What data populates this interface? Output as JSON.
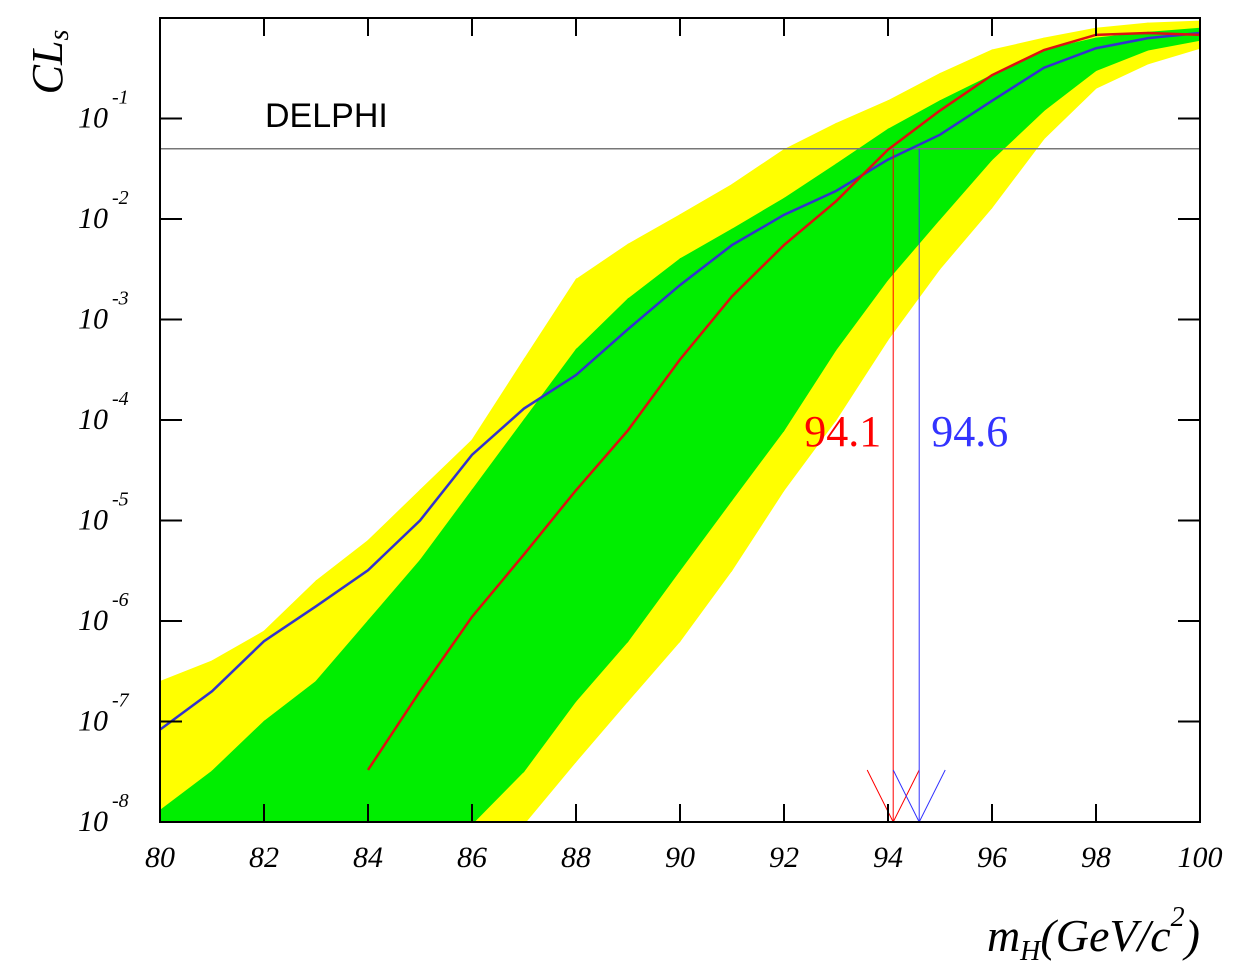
{
  "chart_data": {
    "type": "line",
    "y_label_parts": [
      "CL",
      "s"
    ],
    "x_label_parts": [
      "m",
      "H",
      "(GeV/c",
      "2",
      ")"
    ],
    "annotation_text": "DELPHI",
    "log_y": true,
    "x": [
      80,
      81,
      82,
      83,
      84,
      85,
      86,
      87,
      88,
      89,
      90,
      91,
      92,
      93,
      94,
      95,
      96,
      97,
      98,
      99,
      100
    ],
    "bands": [
      {
        "color": "#ffff00",
        "upper": [
          2.5e-07,
          4e-07,
          7.9e-07,
          2.5e-06,
          6.3e-06,
          2e-05,
          6.3e-05,
          0.0004,
          0.0025,
          0.0056,
          0.011,
          0.022,
          0.049,
          0.089,
          0.15,
          0.28,
          0.48,
          0.63,
          0.79,
          0.89,
          0.93
        ],
        "lower": [
          null,
          null,
          null,
          null,
          null,
          null,
          null,
          null,
          4e-08,
          1.6e-07,
          6.3e-07,
          3.2e-06,
          2e-05,
          0.0001,
          0.00063,
          0.0032,
          0.013,
          0.063,
          0.2,
          0.35,
          0.5
        ]
      },
      {
        "color": "#00ee00",
        "upper": [
          1.3e-08,
          3.2e-08,
          1e-07,
          2.5e-07,
          1e-06,
          4e-06,
          2e-05,
          0.0001,
          0.0005,
          0.0016,
          0.004,
          0.0079,
          0.016,
          0.035,
          0.078,
          0.15,
          0.27,
          0.48,
          0.63,
          0.72,
          0.79
        ],
        "lower": [
          null,
          null,
          null,
          null,
          null,
          null,
          null,
          3.2e-08,
          1.6e-07,
          6.3e-07,
          3.2e-06,
          1.6e-05,
          7.9e-05,
          0.0005,
          0.0025,
          0.01,
          0.039,
          0.12,
          0.3,
          0.48,
          0.6
        ]
      }
    ],
    "series": [
      {
        "color": "#3333cc",
        "values": [
          8.3e-08,
          2e-07,
          6.3e-07,
          1.4e-06,
          3.2e-06,
          1e-05,
          4.5e-05,
          0.00013,
          0.00028,
          0.0008,
          0.0022,
          0.0055,
          0.011,
          0.019,
          0.039,
          0.069,
          0.15,
          0.32,
          0.5,
          0.63,
          0.71
        ]
      },
      {
        "color": "#dd1111",
        "values": [
          null,
          null,
          null,
          null,
          3.3e-08,
          2e-07,
          1.1e-06,
          4.6e-06,
          2e-05,
          7.9e-05,
          0.0004,
          0.0017,
          0.0055,
          0.015,
          0.049,
          0.12,
          0.27,
          0.48,
          0.68,
          0.71,
          0.68
        ]
      }
    ],
    "reference_line": 0.05,
    "limits": [
      {
        "value": 94.1,
        "color": "#ff0000"
      },
      {
        "value": 94.6,
        "color": "#3333ff"
      }
    ],
    "xlim": [
      80,
      100
    ],
    "xticks": [
      80,
      82,
      84,
      86,
      88,
      90,
      92,
      94,
      96,
      98,
      100
    ],
    "ylim": [
      1e-08,
      1
    ],
    "yticks": [
      {
        "value": 1e-08,
        "label": "10",
        "exponent": "-8"
      },
      {
        "value": 1e-07,
        "label": "10",
        "exponent": "-7"
      },
      {
        "value": 1e-06,
        "label": "10",
        "exponent": "-6"
      },
      {
        "value": 1e-05,
        "label": "10",
        "exponent": "-5"
      },
      {
        "value": 0.0001,
        "label": "10",
        "exponent": "-4"
      },
      {
        "value": 0.001,
        "label": "10",
        "exponent": "-3"
      },
      {
        "value": 0.01,
        "label": "10",
        "exponent": "-2"
      },
      {
        "value": 0.1,
        "label": "10",
        "exponent": "-1"
      }
    ]
  }
}
